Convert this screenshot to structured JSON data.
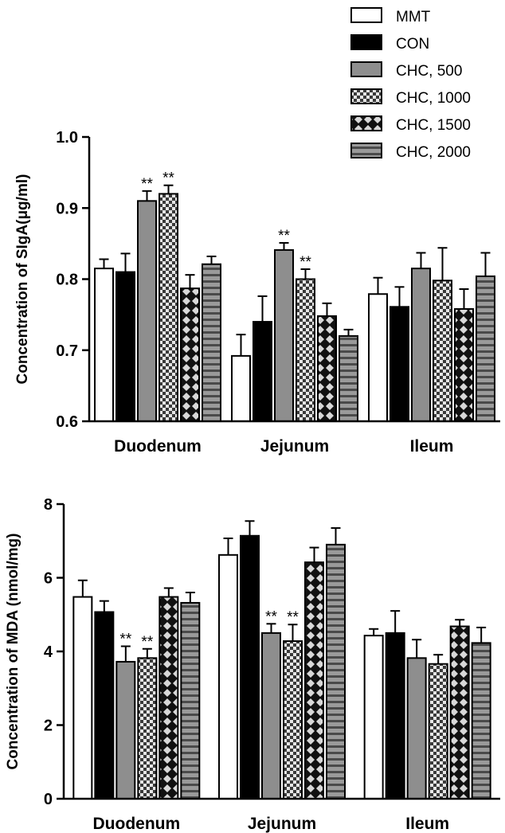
{
  "legend": {
    "entries": [
      {
        "label": "MMT",
        "pattern": "white"
      },
      {
        "label": "CON",
        "pattern": "black"
      },
      {
        "label": "CHC, 500",
        "pattern": "gray"
      },
      {
        "label": "CHC, 1000",
        "pattern": "checker"
      },
      {
        "label": "CHC, 1500",
        "pattern": "diamond"
      },
      {
        "label": "CHC, 2000",
        "pattern": "hstripe"
      }
    ]
  },
  "chart_data": [
    {
      "type": "bar",
      "ylabel": "Concentration of SIgA(μg/ml)",
      "ylim": [
        0.6,
        1.0
      ],
      "yticks": [
        "0.6",
        "0.7",
        "0.8",
        "0.9",
        "1.0"
      ],
      "categories": [
        "Duodenum",
        "Jejunum",
        "Ileum"
      ],
      "series": [
        {
          "name": "MMT",
          "values": [
            0.815,
            0.692,
            0.779
          ],
          "errors": [
            0.013,
            0.03,
            0.023
          ]
        },
        {
          "name": "CON",
          "values": [
            0.81,
            0.74,
            0.761
          ],
          "errors": [
            0.026,
            0.036,
            0.028
          ]
        },
        {
          "name": "CHC, 500",
          "values": [
            0.91,
            0.841,
            0.815
          ],
          "errors": [
            0.014,
            0.01,
            0.022
          ]
        },
        {
          "name": "CHC, 1000",
          "values": [
            0.92,
            0.8,
            0.798
          ],
          "errors": [
            0.012,
            0.014,
            0.046
          ]
        },
        {
          "name": "CHC, 1500",
          "values": [
            0.787,
            0.748,
            0.758
          ],
          "errors": [
            0.019,
            0.018,
            0.028
          ]
        },
        {
          "name": "CHC, 2000",
          "values": [
            0.821,
            0.72,
            0.804
          ],
          "errors": [
            0.011,
            0.009,
            0.033
          ]
        }
      ],
      "significance": [
        {
          "category": 0,
          "series": 2,
          "text": "**"
        },
        {
          "category": 0,
          "series": 3,
          "text": "**"
        },
        {
          "category": 1,
          "series": 2,
          "text": "**"
        },
        {
          "category": 1,
          "series": 3,
          "text": "**"
        }
      ]
    },
    {
      "type": "bar",
      "ylabel": "Concentration of MDA (nmol/mg)",
      "ylim": [
        0,
        8
      ],
      "yticks": [
        "0",
        "2",
        "4",
        "6",
        "8"
      ],
      "categories": [
        "Duodenum",
        "Jejunum",
        "Ileum"
      ],
      "series": [
        {
          "name": "MMT",
          "values": [
            5.48,
            6.62,
            4.43
          ],
          "errors": [
            0.45,
            0.45,
            0.18
          ]
        },
        {
          "name": "CON",
          "values": [
            5.07,
            7.14,
            4.5
          ],
          "errors": [
            0.3,
            0.4,
            0.6
          ]
        },
        {
          "name": "CHC, 500",
          "values": [
            3.72,
            4.5,
            3.82
          ],
          "errors": [
            0.42,
            0.25,
            0.5
          ]
        },
        {
          "name": "CHC, 1000",
          "values": [
            3.82,
            4.28,
            3.66
          ],
          "errors": [
            0.25,
            0.45,
            0.25
          ]
        },
        {
          "name": "CHC, 1500",
          "values": [
            5.48,
            6.42,
            4.68
          ],
          "errors": [
            0.24,
            0.4,
            0.18
          ]
        },
        {
          "name": "CHC, 2000",
          "values": [
            5.32,
            6.9,
            4.23
          ],
          "errors": [
            0.28,
            0.45,
            0.42
          ]
        }
      ],
      "significance": [
        {
          "category": 0,
          "series": 2,
          "text": "**"
        },
        {
          "category": 0,
          "series": 3,
          "text": "**"
        },
        {
          "category": 1,
          "series": 2,
          "text": "**"
        },
        {
          "category": 1,
          "series": 3,
          "text": "**"
        }
      ]
    }
  ]
}
